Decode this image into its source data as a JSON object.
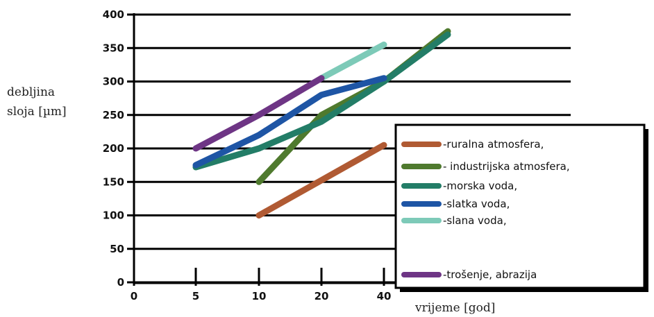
{
  "chart_data": {
    "type": "line",
    "xlabel": "vrijeme [god]",
    "ylabel_lines": [
      "debljina",
      "sloja [µm]"
    ],
    "x_tick_labels": [
      "0",
      "5",
      "10",
      "20",
      "40"
    ],
    "y_ticks": [
      0,
      50,
      100,
      150,
      200,
      250,
      300,
      350,
      400
    ],
    "ylim": [
      0,
      400
    ],
    "grid": "horizontal",
    "legend_position": "bottom-right",
    "series": [
      {
        "name": "-ruralna atmosfera,",
        "color": "#b05a33",
        "x": [
          "10",
          "40"
        ],
        "y": [
          100,
          205
        ]
      },
      {
        "name": "- industrijska atmosfera,",
        "color": "#4f7a2e",
        "x": [
          "10",
          "20",
          "40",
          "60"
        ],
        "y": [
          150,
          250,
          300,
          375
        ]
      },
      {
        "name": "-morska voda,",
        "color": "#237d67",
        "x": [
          "5",
          "10",
          "20",
          "40",
          "60"
        ],
        "y": [
          172,
          200,
          240,
          300,
          370
        ]
      },
      {
        "name": "-slatka voda,",
        "color": "#1e55a5",
        "x": [
          "5",
          "10",
          "20",
          "40"
        ],
        "y": [
          175,
          220,
          280,
          305
        ]
      },
      {
        "name": "-slana voda,",
        "color": "#7dcab8",
        "x": [
          "20",
          "40"
        ],
        "y": [
          305,
          355
        ]
      },
      {
        "name": "-trošenje, abrazija",
        "color": "#6e3585",
        "x": [
          "5",
          "10",
          "20"
        ],
        "y": [
          200,
          250,
          305
        ]
      }
    ]
  }
}
